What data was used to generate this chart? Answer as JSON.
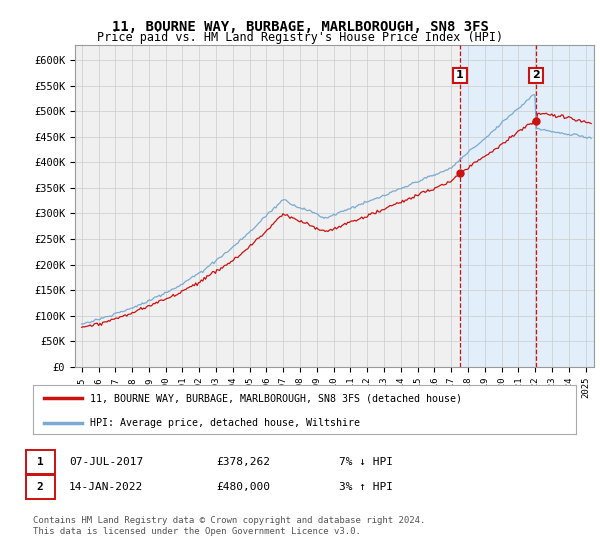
{
  "title_line1": "11, BOURNE WAY, BURBAGE, MARLBOROUGH, SN8 3FS",
  "title_line2": "Price paid vs. HM Land Registry's House Price Index (HPI)",
  "ylabel_ticks": [
    "£0",
    "£50K",
    "£100K",
    "£150K",
    "£200K",
    "£250K",
    "£300K",
    "£350K",
    "£400K",
    "£450K",
    "£500K",
    "£550K",
    "£600K"
  ],
  "ytick_values": [
    0,
    50000,
    100000,
    150000,
    200000,
    250000,
    300000,
    350000,
    400000,
    450000,
    500000,
    550000,
    600000
  ],
  "ylim": [
    0,
    630000
  ],
  "hpi_color": "#7aaad4",
  "price_color": "#cc1111",
  "sale1_t": 2017.52,
  "sale2_t": 2022.04,
  "sale1_price": 378262,
  "sale2_price": 480000,
  "legend_label1": "11, BOURNE WAY, BURBAGE, MARLBOROUGH, SN8 3FS (detached house)",
  "legend_label2": "HPI: Average price, detached house, Wiltshire",
  "note1_date": "07-JUL-2017",
  "note1_price": "£378,262",
  "note1_hpi": "7% ↓ HPI",
  "note2_date": "14-JAN-2022",
  "note2_price": "£480,000",
  "note2_hpi": "3% ↑ HPI",
  "footer": "Contains HM Land Registry data © Crown copyright and database right 2024.\nThis data is licensed under the Open Government Licence v3.0.",
  "bg_color": "#ffffff",
  "plot_bg_color": "#f0f0f0",
  "shade_color": "#ddeeff",
  "xtick_years": [
    1995,
    1996,
    1997,
    1998,
    1999,
    2000,
    2001,
    2002,
    2003,
    2004,
    2005,
    2006,
    2007,
    2008,
    2009,
    2010,
    2011,
    2012,
    2013,
    2014,
    2015,
    2016,
    2017,
    2018,
    2019,
    2020,
    2021,
    2022,
    2023,
    2024,
    2025
  ]
}
